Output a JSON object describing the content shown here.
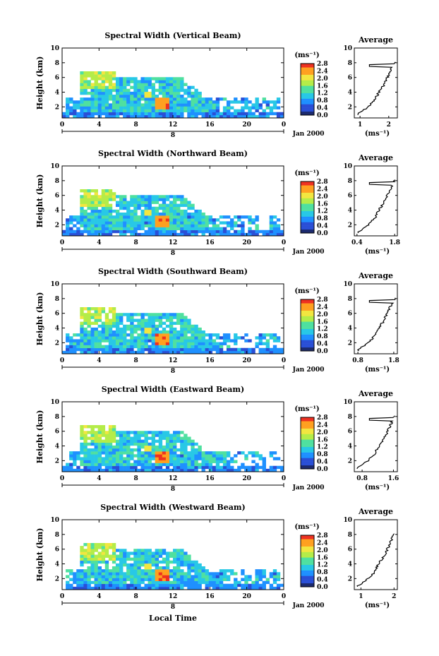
{
  "chart_data": {
    "type": "heatmap",
    "panels": [
      {
        "title": "Spectral Width (Vertical Beam)",
        "avg_xticks": [
          "1",
          "2"
        ],
        "avg_xlim": [
          0.8,
          2.3
        ]
      },
      {
        "title": "Spectral Width (Northward Beam)",
        "avg_xticks": [
          "0.4",
          "1.8"
        ],
        "avg_xlim": [
          0.3,
          1.9
        ]
      },
      {
        "title": "Spectral Width (Southward Beam)",
        "avg_xticks": [
          "0.8",
          "1.8"
        ],
        "avg_xlim": [
          0.7,
          1.9
        ]
      },
      {
        "title": "Spectral Width (Eastward Beam)",
        "avg_xticks": [
          "0.8",
          "1.6"
        ],
        "avg_xlim": [
          0.6,
          1.7
        ]
      },
      {
        "title": "Spectral Width (Westward Beam)",
        "avg_xticks": [
          "1",
          "2"
        ],
        "avg_xlim": [
          0.8,
          2.1
        ]
      }
    ],
    "ylabel": "Height (km)",
    "yticks": [
      "2",
      "4",
      "6",
      "8",
      "10"
    ],
    "ylim": [
      0.5,
      10
    ],
    "xticks": [
      "0",
      "4",
      "8",
      "12",
      "16",
      "20",
      "0"
    ],
    "xlim": [
      0,
      24
    ],
    "date_marker": "8",
    "date_label": "Jan 2000",
    "xlabel": "Local Time",
    "colorbar_unit": "(ms⁻¹)",
    "colorbar_ticks": [
      "0.0",
      "0.4",
      "0.8",
      "1.2",
      "1.6",
      "2.0",
      "2.4",
      "2.8"
    ],
    "avg_title": "Average",
    "avg_xlabel": "(ms⁻¹)",
    "avg_yticks": [
      "2",
      "4",
      "6",
      "8",
      "10"
    ],
    "average_profile": {
      "height_km": [
        1,
        2,
        3,
        4,
        5,
        6,
        7,
        7.6,
        8
      ],
      "note_values_ms": [
        1.0,
        1.3,
        1.5,
        1.6,
        1.75,
        1.85,
        1.95,
        2.0,
        2.05
      ]
    },
    "colors": {
      "scale": [
        "#1c2a6e",
        "#2a4fd6",
        "#1f90ff",
        "#28c8e6",
        "#4fe0a0",
        "#b4ec48",
        "#f2e640",
        "#ffa020",
        "#ee3020"
      ]
    }
  }
}
